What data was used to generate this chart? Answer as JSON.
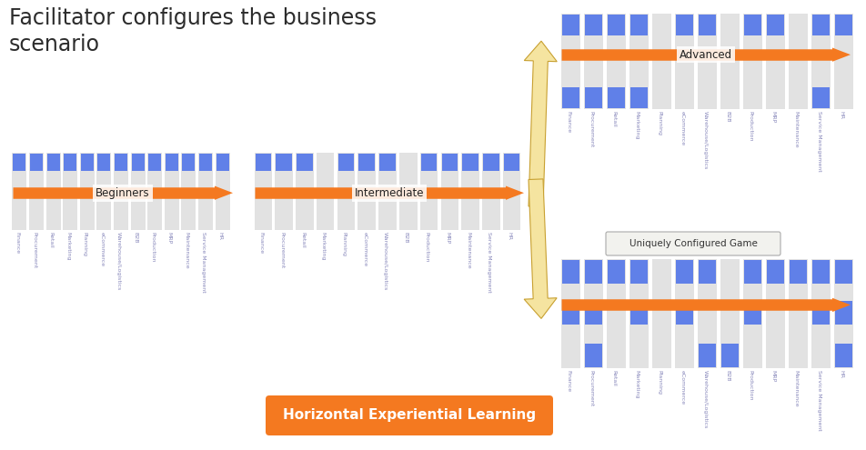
{
  "title": "Facilitator configures the business\nscenario",
  "modules": [
    "Finance",
    "Procurement",
    "Retail",
    "Marketing",
    "Planning",
    "eCommerce",
    "Warehouse/Logistics",
    "B2B",
    "Production",
    "MRP",
    "Maintenance",
    "Service Management",
    "HR"
  ],
  "bar_color": "#6080E8",
  "col_bg": "#E2E2E2",
  "arrow_color": "#F47920",
  "beginner_label": "Beginners",
  "intermediate_label": "Intermediate",
  "advanced_label": "Advanced",
  "unique_label": "Uniquely Configured Game",
  "bottom_label": "Horizontal Experiential Learning",
  "bottom_label_bg": "#F47920",
  "bottom_label_fg": "white",
  "beginner_top": [
    1,
    1,
    1,
    1,
    1,
    1,
    1,
    1,
    1,
    1,
    1,
    1,
    1
  ],
  "beginner_bot": [
    0,
    0,
    0,
    0,
    0,
    0,
    0,
    0,
    0,
    0,
    0,
    0,
    0
  ],
  "intermediate_top": [
    1,
    1,
    1,
    0,
    1,
    1,
    1,
    0,
    1,
    1,
    1,
    1,
    1
  ],
  "intermediate_bot": [
    0,
    0,
    0,
    0,
    0,
    0,
    0,
    0,
    0,
    0,
    0,
    0,
    0
  ],
  "advanced_top": [
    1,
    1,
    1,
    1,
    0,
    1,
    1,
    0,
    1,
    1,
    0,
    1,
    1
  ],
  "advanced_bot": [
    1,
    1,
    1,
    1,
    0,
    0,
    0,
    0,
    0,
    0,
    0,
    1,
    0
  ],
  "unique_top": [
    1,
    1,
    1,
    1,
    0,
    1,
    1,
    0,
    1,
    1,
    1,
    1,
    1
  ],
  "unique_mid": [
    1,
    1,
    0,
    1,
    0,
    1,
    0,
    0,
    1,
    0,
    0,
    1,
    1
  ],
  "unique_bot": [
    0,
    1,
    0,
    0,
    0,
    0,
    1,
    1,
    0,
    0,
    0,
    0,
    1
  ]
}
